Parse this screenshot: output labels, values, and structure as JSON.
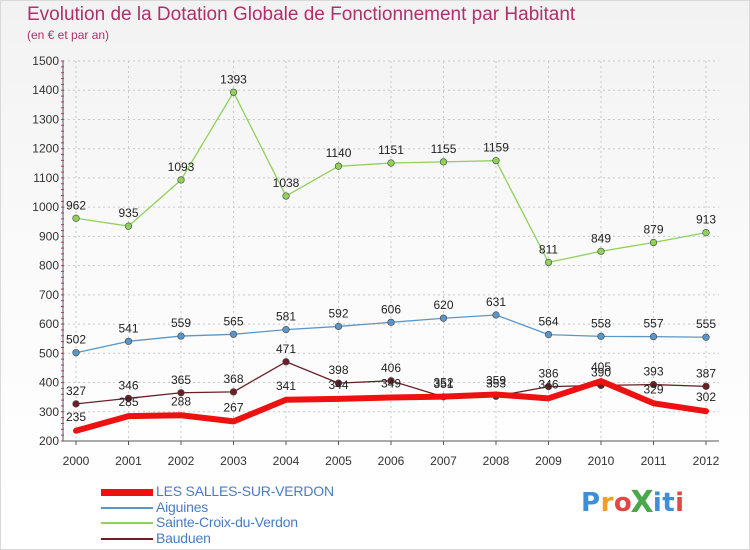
{
  "title": "Evolution de la Dotation Globale de Fonctionnement par Habitant",
  "subtitle": "(en € et par an)",
  "logo": {
    "text": "ProXiti",
    "letters": [
      "P",
      "r",
      "o",
      "X",
      "i",
      "t",
      "i"
    ],
    "colors": [
      "#3f8fd8",
      "#f0a020",
      "#e04848",
      "#49a84a",
      "#3f8fd8",
      "#3f8fd8",
      "#e04848"
    ]
  },
  "colors": {
    "title": "#b0306c",
    "axis_tick": "#c03070",
    "grid": "#c8c8c8"
  },
  "chart_data": {
    "type": "line",
    "title": "Evolution de la Dotation Globale de Fonctionnement par Habitant",
    "subtitle": "(en € et par an)",
    "xlabel": "",
    "ylabel": "",
    "x": [
      "2000",
      "2001",
      "2002",
      "2003",
      "2004",
      "2005",
      "2006",
      "2007",
      "2008",
      "2009",
      "2010",
      "2011",
      "2012"
    ],
    "ylim": [
      200,
      1500
    ],
    "yticks": [
      200,
      300,
      400,
      500,
      600,
      700,
      800,
      900,
      1000,
      1100,
      1200,
      1300,
      1400,
      1500
    ],
    "grid": true,
    "legend_position": "bottom-left",
    "series": [
      {
        "name": "Bauduen",
        "color": "#6b2026",
        "width": 1.3,
        "values": [
          327,
          346,
          365,
          368,
          471,
          398,
          406,
          351,
          353,
          386,
          390,
          393,
          387
        ]
      },
      {
        "name": "Aiguines",
        "color": "#5b96c9",
        "width": 1.3,
        "values": [
          502,
          541,
          559,
          565,
          581,
          592,
          606,
          620,
          631,
          564,
          558,
          557,
          555
        ]
      },
      {
        "name": "Sainte-Croix-du-Verdon",
        "color": "#8fd15a",
        "width": 1.3,
        "values": [
          962,
          935,
          1093,
          1393,
          1038,
          1140,
          1151,
          1155,
          1159,
          811,
          849,
          879,
          913
        ]
      },
      {
        "name": "LES SALLES-SUR-VERDON",
        "color": "#ee1111",
        "width": 6,
        "values": [
          235,
          285,
          288,
          267,
          341,
          344,
          349,
          352,
          359,
          346,
          405,
          329,
          302
        ]
      }
    ],
    "legend": [
      "LES SALLES-SUR-VERDON",
      "Aiguines",
      "Sainte-Croix-du-Verdon",
      "Bauduen"
    ]
  }
}
